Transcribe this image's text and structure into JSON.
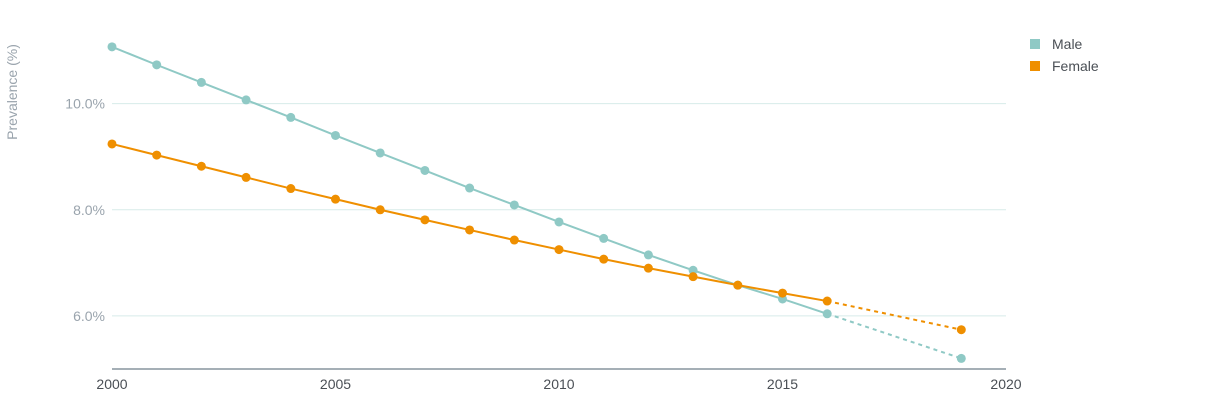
{
  "chart_data": {
    "type": "line",
    "title": "",
    "xlabel": "",
    "ylabel": "Prevalence (%)",
    "xlim": [
      2000,
      2020
    ],
    "ylim": [
      5.0,
      11.5
    ],
    "x_ticks": [
      "2000",
      "2005",
      "2010",
      "2015",
      "2020"
    ],
    "y_ticks": [
      "6.0%",
      "8.0%",
      "10.0%"
    ],
    "y_tick_values": [
      6.0,
      8.0,
      10.0
    ],
    "grid": true,
    "legend": "top-right",
    "series": [
      {
        "name": "Male",
        "color": "#8fc9c5",
        "x": [
          2000,
          2001,
          2002,
          2003,
          2004,
          2005,
          2006,
          2007,
          2008,
          2009,
          2010,
          2011,
          2012,
          2013,
          2014,
          2015,
          2016
        ],
        "values": [
          11.07,
          10.73,
          10.4,
          10.07,
          9.74,
          9.4,
          9.07,
          8.74,
          8.41,
          8.09,
          7.77,
          7.46,
          7.15,
          6.86,
          6.58,
          6.32,
          6.04
        ],
        "projection": {
          "x": [
            2016,
            2019
          ],
          "values": [
            6.04,
            5.2
          ]
        }
      },
      {
        "name": "Female",
        "color": "#ef8f00",
        "x": [
          2000,
          2001,
          2002,
          2003,
          2004,
          2005,
          2006,
          2007,
          2008,
          2009,
          2010,
          2011,
          2012,
          2013,
          2014,
          2015,
          2016
        ],
        "values": [
          9.24,
          9.03,
          8.82,
          8.61,
          8.4,
          8.2,
          8.0,
          7.81,
          7.62,
          7.43,
          7.25,
          7.07,
          6.9,
          6.74,
          6.58,
          6.43,
          6.28
        ],
        "projection": {
          "x": [
            2016,
            2019
          ],
          "values": [
            6.28,
            5.74
          ]
        }
      }
    ]
  }
}
